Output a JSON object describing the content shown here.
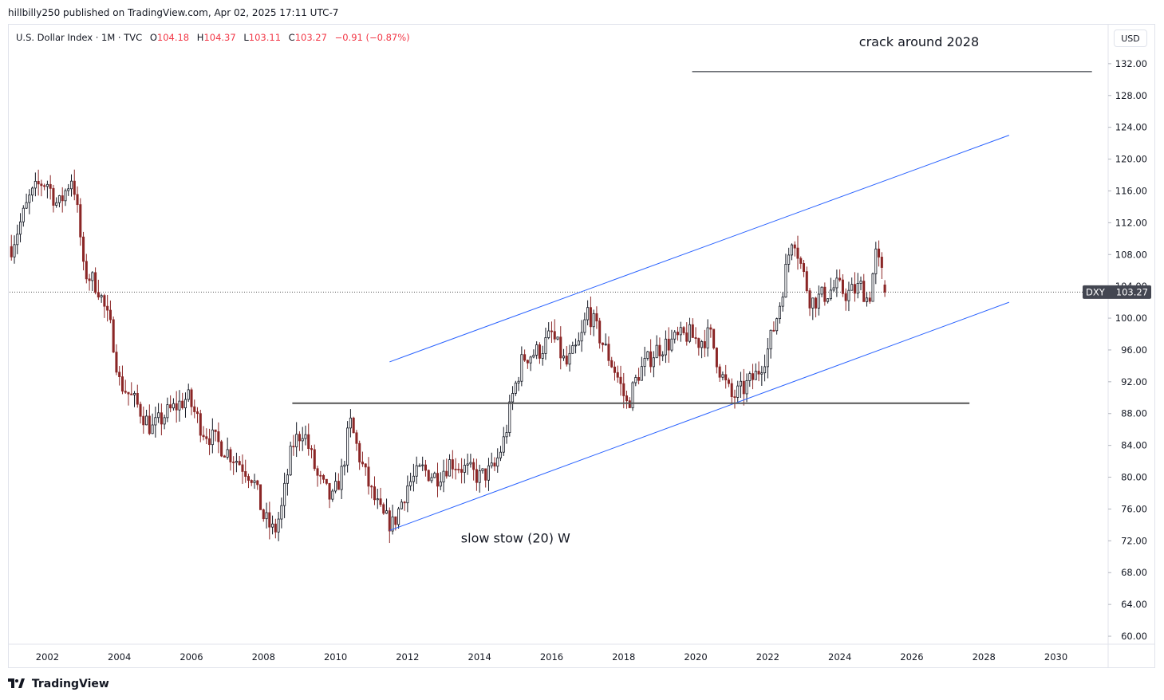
{
  "header": {
    "published": "hillbilly250 published on TradingView.com, Apr 02, 2025 17:11 UTC-7",
    "symbol_desc": "U.S. Dollar Index · 1M · TVC",
    "open_label": "O",
    "open": "104.18",
    "high_label": "H",
    "high": "104.37",
    "low_label": "L",
    "low": "103.11",
    "close_label": "C",
    "close": "103.27",
    "change": "−0.91 (−0.87%)"
  },
  "price_scale": {
    "currency": "USD"
  },
  "brand": {
    "name": "TradingView",
    "logo": "tradingview-logo-icon"
  },
  "colors": {
    "up": "#131722",
    "down": "#8b2626",
    "channel": "#2962ff",
    "support": "#555555",
    "label_bg": "#434651"
  },
  "chart_data": {
    "type": "candlestick",
    "symbol": "DXY",
    "last_price": "103.27",
    "title": "",
    "y_ticks": [
      "132.00",
      "128.00",
      "124.00",
      "120.00",
      "116.00",
      "112.00",
      "108.00",
      "104.00",
      "100.00",
      "96.00",
      "92.00",
      "88.00",
      "84.00",
      "80.00",
      "76.00",
      "72.00",
      "68.00",
      "64.00",
      "60.00"
    ],
    "x_ticks": [
      "2002",
      "2004",
      "2006",
      "2008",
      "2010",
      "2012",
      "2014",
      "2016",
      "2018",
      "2020",
      "2022",
      "2024",
      "2026",
      "2028",
      "2030"
    ],
    "ylim": [
      59,
      137
    ],
    "xlim": [
      2000.95,
      2031.45
    ],
    "grid": false,
    "series": [
      {
        "points": [
          [
            2001.0,
            109
          ],
          [
            2001.5,
            115
          ],
          [
            2001.8,
            117
          ],
          [
            2002.0,
            117
          ],
          [
            2002.3,
            114
          ],
          [
            2002.7,
            118
          ],
          [
            2002.9,
            111
          ],
          [
            2003.0,
            106
          ],
          [
            2003.4,
            104
          ],
          [
            2003.8,
            98
          ],
          [
            2004.0,
            92
          ],
          [
            2004.5,
            89
          ],
          [
            2004.9,
            86
          ],
          [
            2005.3,
            88
          ],
          [
            2005.9,
            90
          ],
          [
            2006.3,
            86
          ],
          [
            2006.8,
            84
          ],
          [
            2007.3,
            82
          ],
          [
            2007.7,
            80
          ],
          [
            2008.0,
            75
          ],
          [
            2008.3,
            73
          ],
          [
            2008.5,
            76
          ],
          [
            2008.8,
            84
          ],
          [
            2009.1,
            86
          ],
          [
            2009.5,
            80
          ],
          [
            2009.9,
            77
          ],
          [
            2010.2,
            81
          ],
          [
            2010.4,
            87
          ],
          [
            2010.7,
            82
          ],
          [
            2011.0,
            78
          ],
          [
            2011.3,
            75
          ],
          [
            2011.6,
            74
          ],
          [
            2012.0,
            79
          ],
          [
            2012.4,
            81
          ],
          [
            2012.8,
            80
          ],
          [
            2013.2,
            82
          ],
          [
            2013.6,
            81
          ],
          [
            2014.0,
            80
          ],
          [
            2014.4,
            81
          ],
          [
            2014.7,
            85
          ],
          [
            2014.9,
            90
          ],
          [
            2015.2,
            95
          ],
          [
            2015.7,
            96
          ],
          [
            2016.0,
            98
          ],
          [
            2016.4,
            94
          ],
          [
            2016.8,
            97
          ],
          [
            2017.0,
            101
          ],
          [
            2017.4,
            97
          ],
          [
            2017.8,
            93
          ],
          [
            2018.1,
            89
          ],
          [
            2018.4,
            93
          ],
          [
            2018.9,
            96
          ],
          [
            2019.3,
            97
          ],
          [
            2019.8,
            98
          ],
          [
            2020.1,
            97
          ],
          [
            2020.4,
            98
          ],
          [
            2020.7,
            93
          ],
          [
            2021.0,
            90
          ],
          [
            2021.3,
            91
          ],
          [
            2021.7,
            93
          ],
          [
            2022.0,
            96
          ],
          [
            2022.3,
            101
          ],
          [
            2022.7,
            111
          ],
          [
            2022.9,
            107
          ],
          [
            2023.2,
            102
          ],
          [
            2023.6,
            103
          ],
          [
            2023.9,
            104
          ],
          [
            2024.2,
            103
          ],
          [
            2024.6,
            104
          ],
          [
            2024.8,
            102
          ],
          [
            2025.0,
            108
          ],
          [
            2025.2,
            105
          ],
          [
            2025.25,
            103.27
          ]
        ]
      }
    ],
    "lines": [
      {
        "name": "channel-upper",
        "x": [
          2011.5,
          2028.7
        ],
        "y": [
          94.5,
          123
        ]
      },
      {
        "name": "channel-lower",
        "x": [
          2011.5,
          2028.7
        ],
        "y": [
          73.3,
          102
        ]
      },
      {
        "name": "support-line",
        "x": [
          2008.8,
          2027.6
        ],
        "y": [
          89.3,
          89.3
        ]
      },
      {
        "name": "target-line",
        "x": [
          2019.9,
          2031.0
        ],
        "y": [
          131,
          131
        ]
      }
    ],
    "annotations": [
      {
        "text": "crack around 2028",
        "x": 2026.2,
        "y": 134.2
      },
      {
        "text": "slow stow (20) W",
        "x": 2015.0,
        "y": 71.8
      }
    ]
  }
}
